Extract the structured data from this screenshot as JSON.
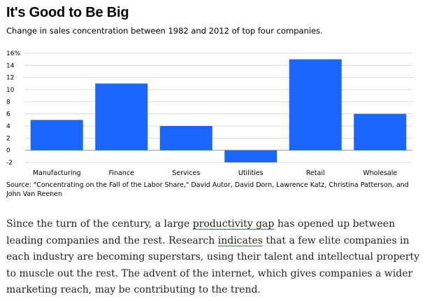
{
  "chart_data": {
    "type": "bar",
    "title": "It's Good to Be Big",
    "subtitle": "Change in sales concentration between 1982 and 2012 of top four companies.",
    "categories": [
      "Manufacturing",
      "Finance",
      "Services",
      "Utilities",
      "Retail",
      "Wholesale"
    ],
    "values": [
      5,
      11,
      4,
      -2,
      15,
      6
    ],
    "ylim": [
      -2,
      16
    ],
    "yticks": [
      -2,
      0,
      2,
      4,
      6,
      8,
      10,
      12,
      14,
      16
    ],
    "ytick_labels": [
      "-2",
      "0",
      "2",
      "4",
      "6",
      "8",
      "10",
      "12",
      "14",
      "16%"
    ],
    "xlabel": "",
    "ylabel": "",
    "grid": true,
    "bar_color": "#1a66ff",
    "source": "Source: \"Concentrating on the Fall of the Labor Share,\" David Autor, David Dorn, Lawrence Katz, Christina Patterson, and John Van Reenen"
  },
  "article": {
    "p1_a": "Since the turn of the century, a large ",
    "link1": "productivity gap",
    "p1_b": " has opened up between leading companies and the rest. Research ",
    "link2": "indicates",
    "p1_c": " that a few elite companies in each industry are becoming superstars, using their talent and intellectual property to muscle out the rest. The advent of the internet, which gives companies a wider marketing reach, may be contributing to the trend."
  }
}
